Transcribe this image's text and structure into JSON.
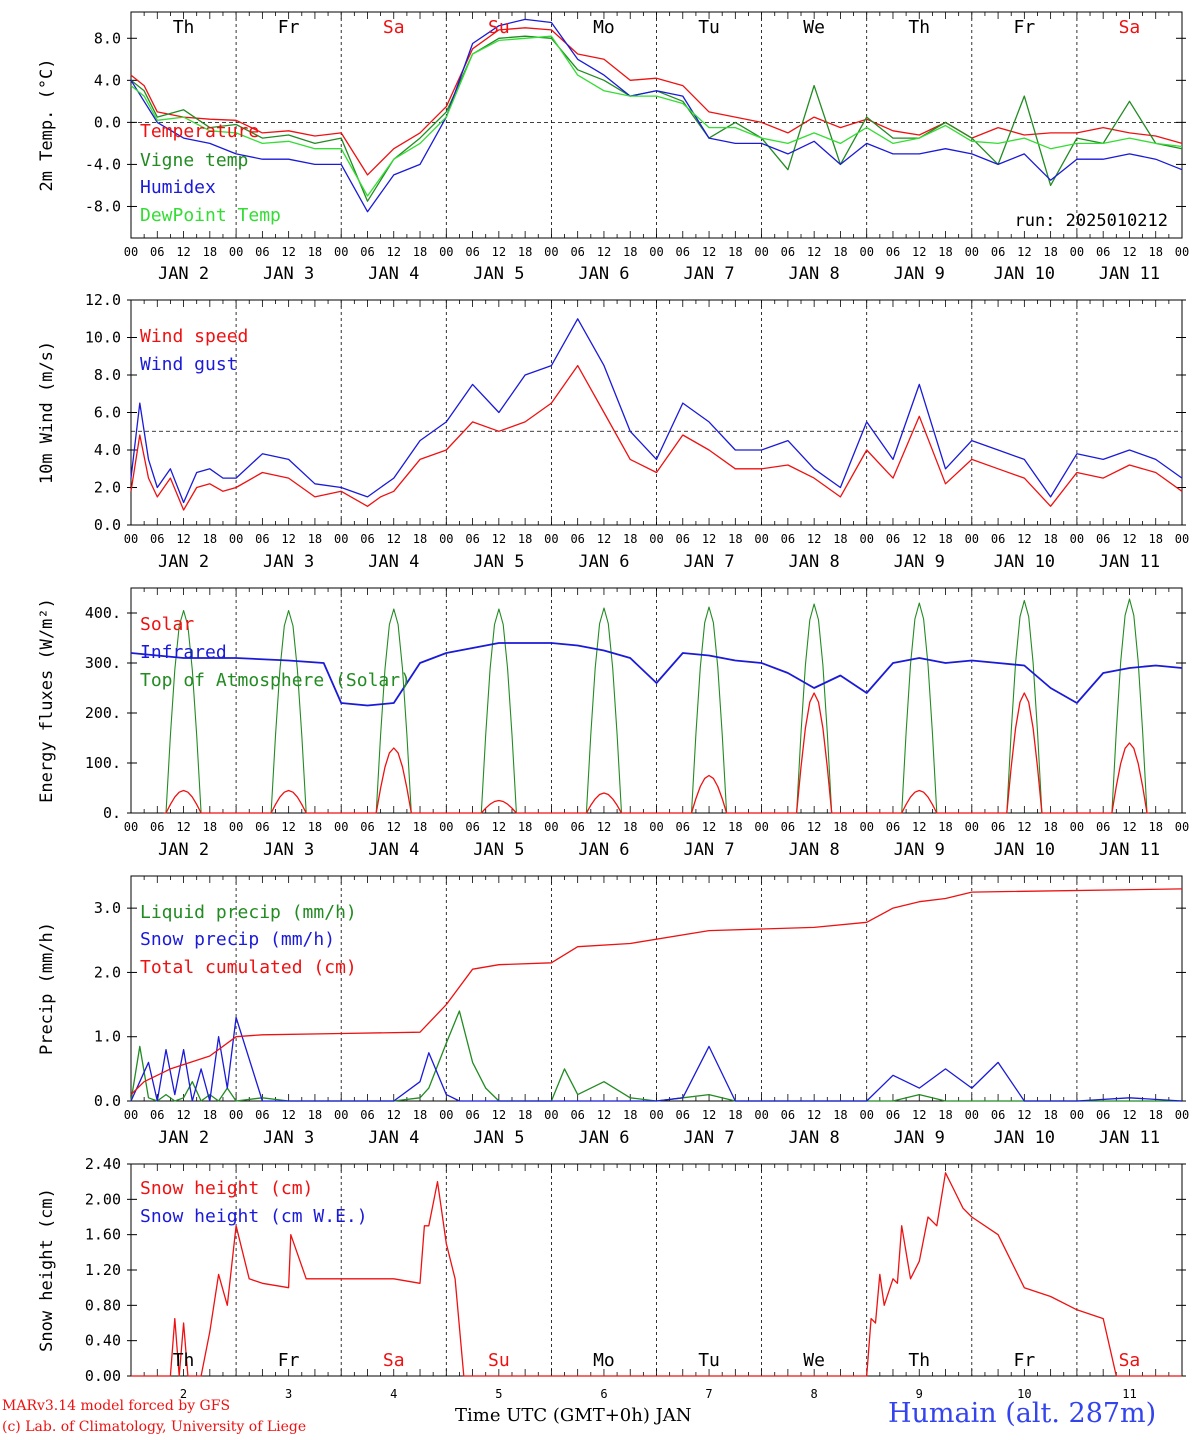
{
  "colors": {
    "red": "#ee1111",
    "green": "#228b22",
    "blue": "#1a1ad8",
    "light_green": "#33dd33",
    "axis": "#000000",
    "footer_blue": "#3344ee"
  },
  "day_names": [
    "Th",
    "Fr",
    "Sa",
    "Su",
    "Mo",
    "Tu",
    "We",
    "Th",
    "Fr",
    "Sa"
  ],
  "weekend_days": [
    "Sa",
    "Su"
  ],
  "hour_ticks": [
    "00",
    "06",
    "12",
    "18"
  ],
  "date_labels": [
    "JAN  2",
    "JAN  3",
    "JAN  4",
    "JAN  5",
    "JAN  6",
    "JAN  7",
    "JAN  8",
    "JAN  9",
    "JAN 10",
    "JAN 11"
  ],
  "bottom_day_numbers": [
    "2",
    "3",
    "4",
    "5",
    "6",
    "7",
    "8",
    "9",
    "10",
    "11"
  ],
  "footer": {
    "model": "MARv3.14 model forced by GFS",
    "lab": "(c) Lab. of Climatology, University of Liege",
    "axis_title": "Time UTC (GMT+0h) JAN",
    "station": "Humain (alt. 287m)"
  },
  "chart_data": [
    {
      "type": "line",
      "ylabel": "2m Temp. (°C)",
      "ylim": [
        -11,
        10.5
      ],
      "yticks": [
        "8.0",
        "4.0",
        "0.0",
        "-4.0",
        "-8.0"
      ],
      "ytick_values": [
        8,
        4,
        0,
        -4,
        -8
      ],
      "ref_line": 0,
      "annotation": "run: 2025010212",
      "x_hours": [
        0,
        3,
        6,
        12,
        18,
        24,
        30,
        36,
        42,
        48,
        54,
        60,
        66,
        72,
        78,
        84,
        90,
        96,
        102,
        108,
        114,
        120,
        126,
        132,
        138,
        144,
        150,
        156,
        162,
        168,
        174,
        180,
        186,
        192,
        198,
        204,
        210,
        216,
        222,
        228,
        234,
        240
      ],
      "series": [
        {
          "name": "Temperature",
          "color": "red",
          "values": [
            4.5,
            3.5,
            1.0,
            0.5,
            0.3,
            0.2,
            -1.0,
            -0.8,
            -1.3,
            -1.0,
            -5.0,
            -2.5,
            -1.0,
            1.5,
            7.0,
            8.8,
            9.0,
            8.8,
            6.5,
            6.0,
            4.0,
            4.2,
            3.5,
            1.0,
            0.5,
            0.0,
            -1.0,
            0.5,
            -0.5,
            0.3,
            -0.8,
            -1.2,
            0.0,
            -1.5,
            -0.5,
            -1.2,
            -1.0,
            -1.0,
            -0.5,
            -1.0,
            -1.3,
            -2.0
          ]
        },
        {
          "name": "Vigne temp",
          "color": "green",
          "values": [
            4.0,
            3.0,
            0.5,
            1.2,
            -0.5,
            -0.2,
            -1.5,
            -1.2,
            -2.0,
            -1.5,
            -7.5,
            -3.5,
            -1.5,
            1.0,
            6.5,
            8.0,
            8.2,
            8.0,
            5.0,
            4.0,
            2.5,
            3.0,
            2.0,
            -1.5,
            0.0,
            -1.5,
            -4.5,
            3.5,
            -4.0,
            0.5,
            -1.5,
            -1.5,
            0.0,
            -1.5,
            -4.0,
            2.5,
            -6.0,
            -1.5,
            -2.0,
            2.0,
            -2.0,
            -2.5
          ]
        },
        {
          "name": "Humidex",
          "color": "blue",
          "values": [
            4.0,
            2.0,
            0.0,
            -1.5,
            -2.0,
            -3.0,
            -3.5,
            -3.5,
            -4.0,
            -4.0,
            -8.5,
            -5.0,
            -4.0,
            0.5,
            7.5,
            9.2,
            9.8,
            9.5,
            6.0,
            4.5,
            2.5,
            3.0,
            2.5,
            -1.5,
            -2.0,
            -2.0,
            -3.0,
            -1.8,
            -4.0,
            -2.0,
            -3.0,
            -3.0,
            -2.5,
            -3.0,
            -4.0,
            -3.0,
            -5.5,
            -3.5,
            -3.5,
            -3.0,
            -3.5,
            -4.5
          ]
        },
        {
          "name": "DewPoint Temp",
          "color": "light_green",
          "values": [
            3.5,
            2.5,
            0.2,
            0.5,
            -0.8,
            -1.0,
            -2.0,
            -1.8,
            -2.5,
            -2.5,
            -7.0,
            -3.5,
            -2.0,
            0.5,
            6.5,
            7.8,
            8.0,
            8.2,
            4.5,
            3.0,
            2.5,
            2.5,
            1.8,
            -0.5,
            -0.5,
            -1.5,
            -2.0,
            -1.0,
            -2.0,
            -0.5,
            -2.0,
            -1.5,
            -0.3,
            -1.8,
            -2.0,
            -1.5,
            -2.5,
            -2.0,
            -2.0,
            -1.5,
            -2.0,
            -2.3
          ]
        }
      ]
    },
    {
      "type": "line",
      "ylabel": "10m Wind (m/s)",
      "ylim": [
        0,
        12
      ],
      "yticks": [
        "12.0",
        "10.0",
        "8.0",
        "6.0",
        "4.0",
        "2.0",
        "0.0"
      ],
      "ytick_values": [
        12,
        10,
        8,
        6,
        4,
        2,
        0
      ],
      "ref_line": 5,
      "x_hours": [
        0,
        2,
        4,
        6,
        9,
        12,
        15,
        18,
        21,
        24,
        30,
        36,
        42,
        48,
        54,
        57,
        60,
        66,
        72,
        78,
        84,
        90,
        96,
        102,
        108,
        114,
        120,
        126,
        132,
        138,
        144,
        150,
        156,
        162,
        168,
        174,
        180,
        186,
        192,
        198,
        204,
        210,
        216,
        222,
        228,
        234,
        240
      ],
      "series": [
        {
          "name": "Wind speed",
          "color": "red",
          "values": [
            1.8,
            4.8,
            2.5,
            1.5,
            2.5,
            0.8,
            2.0,
            2.2,
            1.8,
            2.0,
            2.8,
            2.5,
            1.5,
            1.8,
            1.0,
            1.5,
            1.8,
            3.5,
            4.0,
            5.5,
            5.0,
            5.5,
            6.5,
            8.5,
            6.0,
            3.5,
            2.8,
            4.8,
            4.0,
            3.0,
            3.0,
            3.2,
            2.5,
            1.5,
            4.0,
            2.5,
            5.8,
            2.2,
            3.5,
            3.0,
            2.5,
            1.0,
            2.8,
            2.5,
            3.2,
            2.8,
            1.8
          ]
        },
        {
          "name": "Wind gust",
          "color": "blue",
          "values": [
            2.5,
            6.5,
            3.5,
            2.0,
            3.0,
            1.2,
            2.8,
            3.0,
            2.5,
            2.5,
            3.8,
            3.5,
            2.2,
            2.0,
            1.5,
            2.0,
            2.5,
            4.5,
            5.5,
            7.5,
            6.0,
            8.0,
            8.5,
            11.0,
            8.5,
            5.0,
            3.5,
            6.5,
            5.5,
            4.0,
            4.0,
            4.5,
            3.0,
            2.0,
            5.5,
            3.5,
            7.5,
            3.0,
            4.5,
            4.0,
            3.5,
            1.5,
            3.8,
            3.5,
            4.0,
            3.5,
            2.5
          ]
        }
      ]
    },
    {
      "type": "line",
      "ylabel": "Energy fluxes (W/m²)",
      "ylim": [
        0,
        450
      ],
      "yticks": [
        "400.",
        "300.",
        "200.",
        "100.",
        "0."
      ],
      "ytick_values": [
        400,
        300,
        200,
        100,
        0
      ],
      "solar_peaks": [
        45,
        45,
        130,
        25,
        40,
        75,
        240,
        45,
        240,
        140
      ],
      "toa_peaks": [
        405,
        405,
        408,
        408,
        410,
        412,
        418,
        420,
        425,
        428
      ],
      "infrared": {
        "x_hours": [
          0,
          12,
          24,
          36,
          44,
          48,
          54,
          60,
          66,
          72,
          78,
          84,
          90,
          96,
          102,
          108,
          114,
          120,
          126,
          132,
          138,
          144,
          150,
          156,
          162,
          168,
          174,
          180,
          186,
          192,
          198,
          204,
          210,
          216,
          222,
          228,
          234,
          240
        ],
        "values": [
          320,
          310,
          310,
          305,
          300,
          220,
          215,
          220,
          300,
          320,
          330,
          340,
          340,
          340,
          335,
          325,
          310,
          260,
          320,
          315,
          305,
          300,
          280,
          250,
          275,
          240,
          300,
          310,
          300,
          305,
          300,
          295,
          250,
          220,
          280,
          290,
          295,
          290
        ]
      },
      "series": [
        {
          "name": "Solar",
          "color": "red"
        },
        {
          "name": "Infrared",
          "color": "blue"
        },
        {
          "name": "Top of Atmosphere (Solar)",
          "color": "green"
        }
      ]
    },
    {
      "type": "line",
      "ylabel": "Precip (mm/h)",
      "ylim": [
        0,
        3.5
      ],
      "yticks": [
        "3.0",
        "2.0",
        "1.0",
        "0.0"
      ],
      "ytick_values": [
        3,
        2,
        1,
        0
      ],
      "x_hours": [
        0,
        2,
        4,
        6,
        8,
        10,
        12,
        14,
        16,
        18,
        20,
        22,
        24,
        30,
        36,
        48,
        60,
        66,
        68,
        72,
        75,
        78,
        81,
        84,
        90,
        96,
        99,
        102,
        108,
        114,
        120,
        126,
        132,
        138,
        144,
        150,
        162,
        168,
        174,
        180,
        186,
        192,
        198,
        204,
        216,
        228,
        240
      ],
      "series": [
        {
          "name": "Liquid precip (mm/h)",
          "color": "green",
          "values": [
            0.0,
            0.85,
            0.05,
            0.0,
            0.1,
            0.0,
            0.05,
            0.3,
            0.0,
            0.1,
            0.0,
            0.2,
            0.0,
            0.05,
            0.0,
            0.0,
            0.0,
            0.05,
            0.2,
            0.9,
            1.4,
            0.6,
            0.2,
            0.0,
            0.0,
            0.0,
            0.5,
            0.1,
            0.3,
            0.05,
            0.0,
            0.05,
            0.1,
            0.0,
            0.0,
            0.0,
            0.0,
            0.0,
            0.0,
            0.1,
            0.0,
            0.0,
            0.0,
            0.0,
            0.0,
            0.0,
            0.0
          ]
        },
        {
          "name": "Snow precip (mm/h)",
          "color": "blue",
          "values": [
            0.0,
            0.3,
            0.6,
            0.0,
            0.8,
            0.1,
            0.8,
            0.0,
            0.5,
            0.0,
            1.0,
            0.2,
            1.3,
            0.0,
            0.0,
            0.0,
            0.0,
            0.3,
            0.75,
            0.1,
            0.0,
            0.0,
            0.0,
            0.0,
            0.0,
            0.0,
            0.0,
            0.0,
            0.0,
            0.0,
            0.0,
            0.05,
            0.85,
            0.0,
            0.0,
            0.0,
            0.0,
            0.0,
            0.4,
            0.2,
            0.5,
            0.2,
            0.6,
            0.0,
            0.0,
            0.05,
            0.0
          ]
        },
        {
          "name": "Total cumulated (cm)",
          "color": "red",
          "x_hours": [
            0,
            3,
            9,
            18,
            24,
            30,
            48,
            66,
            72,
            78,
            84,
            96,
            102,
            114,
            132,
            156,
            168,
            174,
            180,
            186,
            192,
            240
          ],
          "values": [
            0.1,
            0.3,
            0.5,
            0.7,
            1.0,
            1.03,
            1.05,
            1.07,
            1.5,
            2.05,
            2.12,
            2.15,
            2.4,
            2.45,
            2.65,
            2.7,
            2.78,
            3.0,
            3.1,
            3.15,
            3.25,
            3.3
          ]
        }
      ]
    },
    {
      "type": "line",
      "ylabel": "Snow height (cm)",
      "ylim": [
        0,
        2.4
      ],
      "yticks": [
        "2.40",
        "2.00",
        "1.60",
        "1.20",
        "0.80",
        "0.40",
        "0.00"
      ],
      "ytick_values": [
        2.4,
        2.0,
        1.6,
        1.2,
        0.8,
        0.4,
        0.0
      ],
      "x_hours": [
        0,
        9,
        10,
        11,
        12,
        13,
        14,
        16,
        18,
        20,
        22,
        24,
        27,
        30,
        36,
        36.5,
        40,
        48,
        60,
        66,
        67,
        68,
        70,
        72,
        74,
        76,
        78,
        150,
        168,
        169,
        170,
        171,
        172,
        174,
        175,
        176,
        178,
        180,
        182,
        184,
        186,
        188,
        190,
        192,
        198,
        204,
        210,
        216,
        222,
        225,
        228,
        240
      ],
      "series": [
        {
          "name": "Snow height (cm)",
          "color": "red",
          "values": [
            0,
            0,
            0.65,
            0,
            0.6,
            0,
            0,
            0,
            0.5,
            1.15,
            0.8,
            1.7,
            1.1,
            1.05,
            1.0,
            1.6,
            1.1,
            1.1,
            1.1,
            1.05,
            1.7,
            1.7,
            2.2,
            1.5,
            1.1,
            0,
            0,
            0,
            0,
            0.65,
            0.6,
            1.15,
            0.8,
            1.1,
            1.05,
            1.7,
            1.1,
            1.3,
            1.8,
            1.7,
            2.3,
            2.1,
            1.9,
            1.8,
            1.6,
            1.0,
            0.9,
            0.75,
            0.65,
            0,
            0,
            0
          ]
        },
        {
          "name": "Snow height (cm W.E.)",
          "color": "blue"
        }
      ]
    }
  ]
}
